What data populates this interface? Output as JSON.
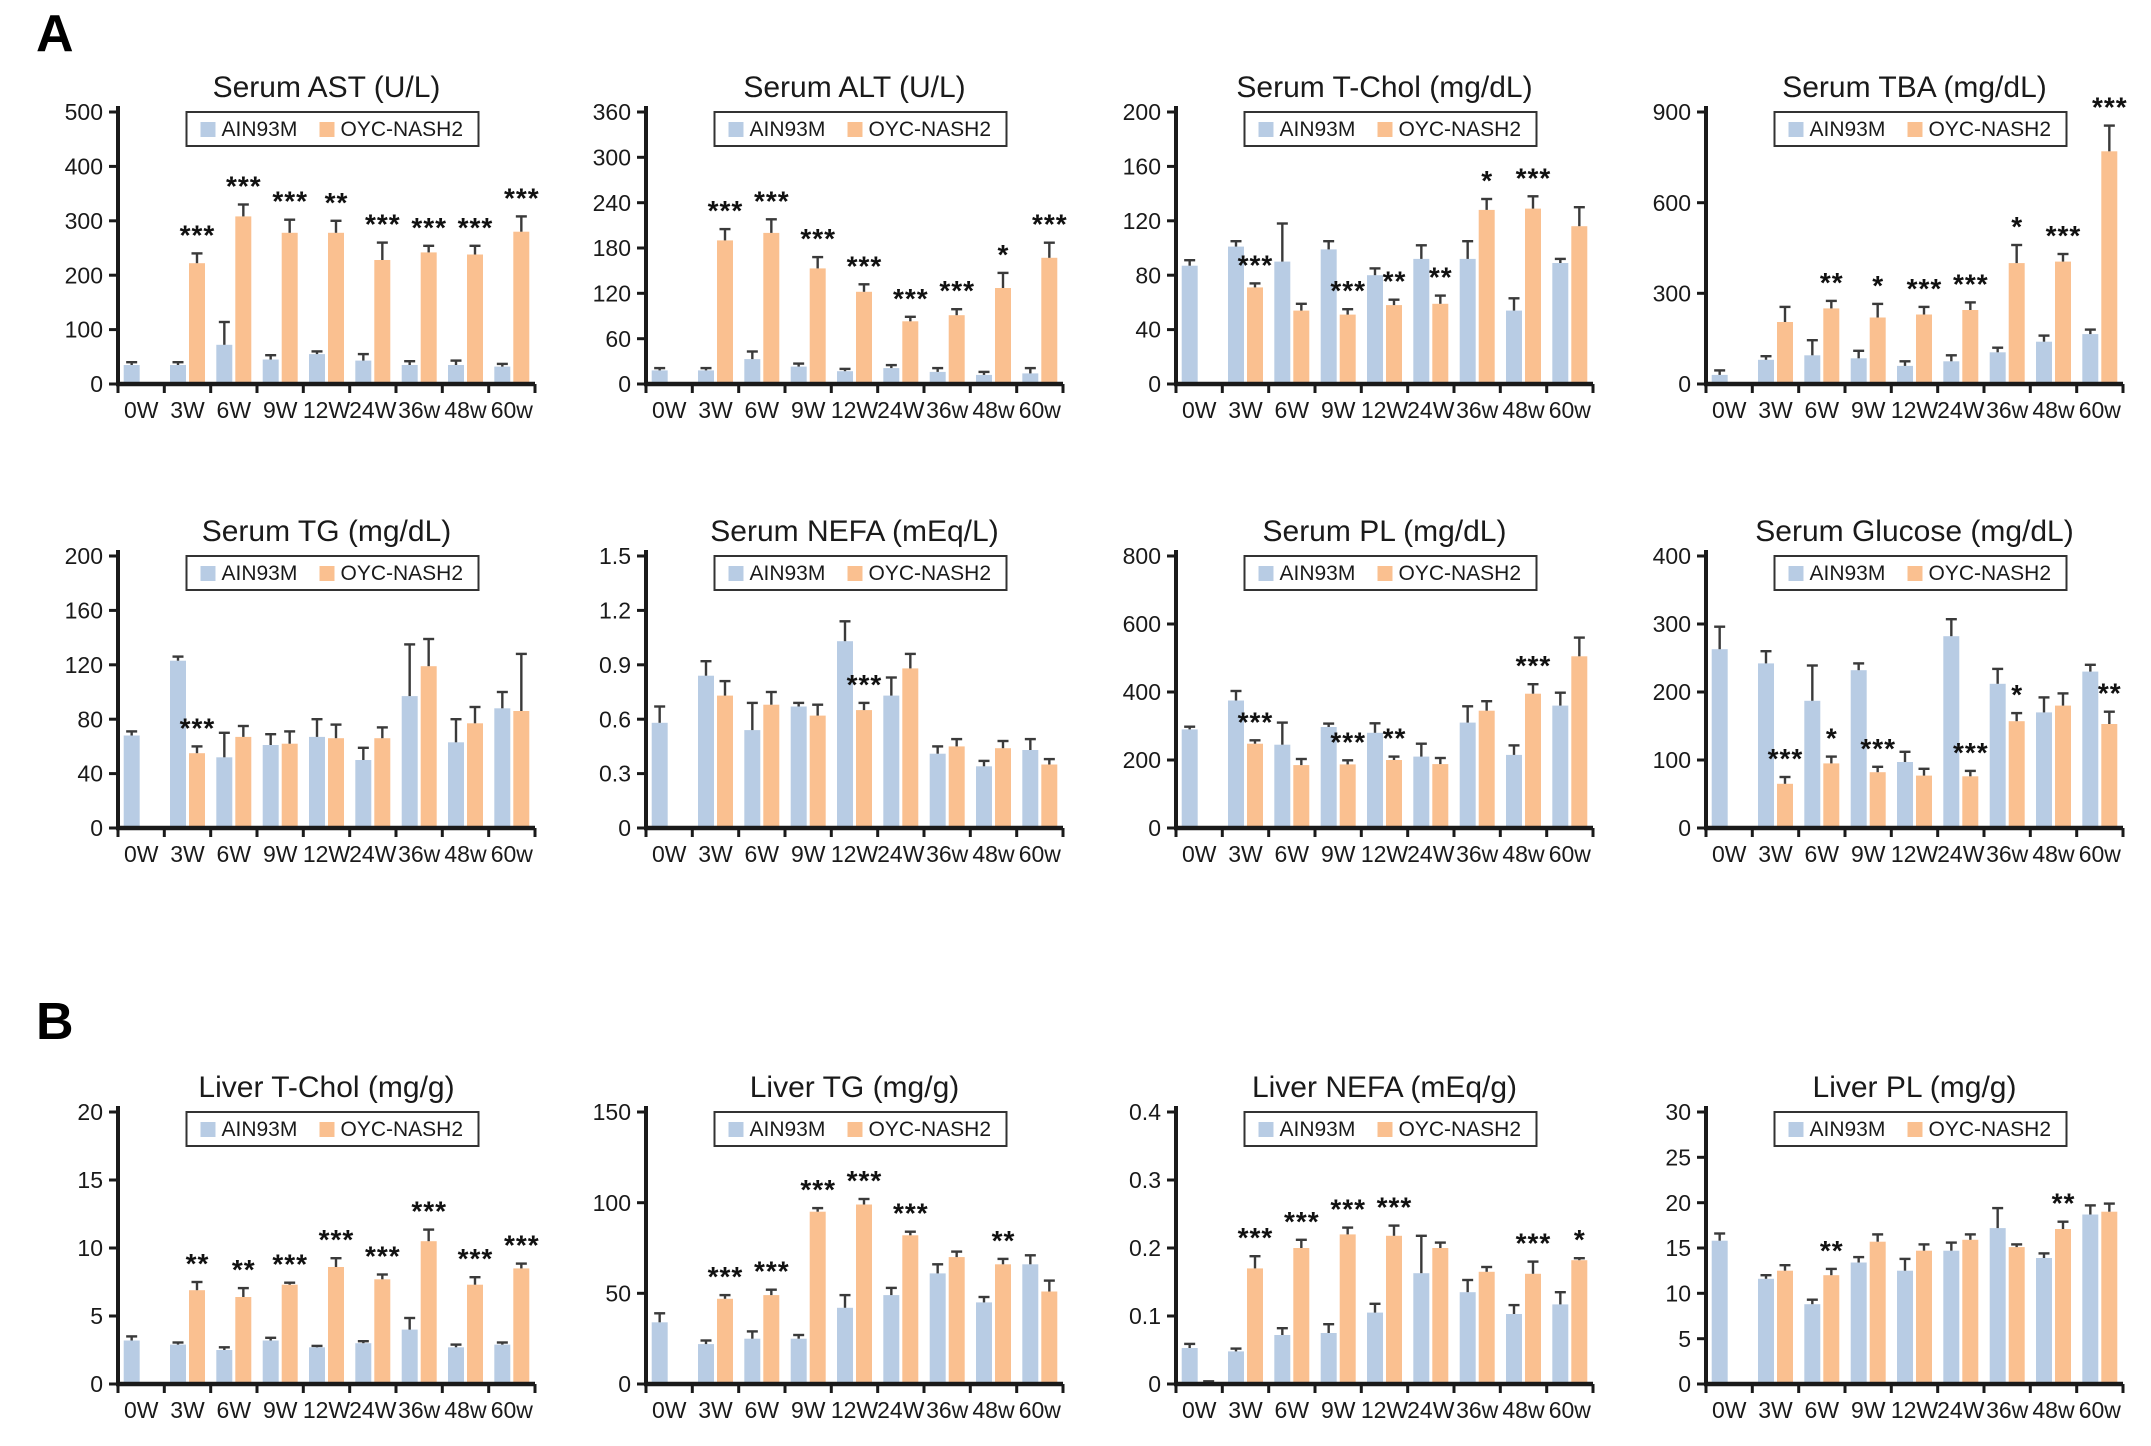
{
  "panels": {
    "a_label": "A",
    "b_label": "B"
  },
  "legend": {
    "series1": "AIN93M",
    "series2": "OYC-NASH2"
  },
  "colors": {
    "ain93m": "#B8CCE4",
    "oyc_nash2": "#FAC090",
    "error_bar": "#3a3a3a",
    "axis": "#1a1a1a",
    "significance": "#111111",
    "title_text": "#1a1a1a",
    "legend_border": "#333333"
  },
  "categories": [
    "0W",
    "3W",
    "6W",
    "9W",
    "12W",
    "24W",
    "36w",
    "48w",
    "60w"
  ],
  "chart_data": [
    {
      "type": "bar",
      "panel": "A",
      "title": "Serum AST (U/L)",
      "ylim": [
        0,
        500
      ],
      "yticks": [
        "0",
        "100",
        "200",
        "300",
        "400",
        "500"
      ],
      "categories": [
        "0W",
        "3W",
        "6W",
        "9W",
        "12W",
        "24W",
        "36w",
        "48w",
        "60w"
      ],
      "series": [
        {
          "name": "AIN93M",
          "values": [
            35,
            35,
            72,
            45,
            55,
            43,
            35,
            35,
            32
          ],
          "errors": [
            5,
            5,
            42,
            8,
            5,
            12,
            7,
            8,
            5
          ]
        },
        {
          "name": "OYC-NASH2",
          "values": [
            null,
            222,
            308,
            278,
            278,
            228,
            242,
            238,
            280
          ],
          "errors": [
            null,
            18,
            22,
            24,
            22,
            32,
            12,
            16,
            28
          ]
        }
      ],
      "significance": [
        "",
        "***",
        "***",
        "***",
        "**",
        "***",
        "***",
        "***",
        "***"
      ]
    },
    {
      "type": "bar",
      "panel": "A",
      "title": "Serum ALT (U/L)",
      "ylim": [
        0,
        360
      ],
      "yticks": [
        "0",
        "60",
        "120",
        "180",
        "240",
        "300",
        "360"
      ],
      "categories": [
        "0W",
        "3W",
        "6W",
        "9W",
        "12W",
        "24W",
        "36w",
        "48w",
        "60w"
      ],
      "series": [
        {
          "name": "AIN93M",
          "values": [
            18,
            18,
            33,
            23,
            17,
            21,
            16,
            12,
            14
          ],
          "errors": [
            3,
            3,
            10,
            4,
            3,
            4,
            5,
            4,
            7
          ]
        },
        {
          "name": "OYC-NASH2",
          "values": [
            null,
            190,
            200,
            153,
            122,
            83,
            91,
            127,
            167
          ],
          "errors": [
            null,
            15,
            18,
            15,
            10,
            6,
            8,
            20,
            20
          ]
        }
      ],
      "significance": [
        "",
        "***",
        "***",
        "***",
        "***",
        "***",
        "***",
        "*",
        "***"
      ]
    },
    {
      "type": "bar",
      "panel": "A",
      "title": "Serum T-Chol (mg/dL)",
      "ylim": [
        0,
        200
      ],
      "yticks": [
        "0",
        "40",
        "80",
        "120",
        "160",
        "200"
      ],
      "categories": [
        "0W",
        "3W",
        "6W",
        "9W",
        "12W",
        "24W",
        "36w",
        "48w",
        "60w"
      ],
      "series": [
        {
          "name": "AIN93M",
          "values": [
            87,
            101,
            90,
            99,
            80,
            92,
            92,
            54,
            89
          ],
          "errors": [
            4,
            4,
            28,
            6,
            5,
            10,
            13,
            9,
            3
          ]
        },
        {
          "name": "OYC-NASH2",
          "values": [
            null,
            71,
            54,
            51,
            58,
            59,
            128,
            129,
            116
          ],
          "errors": [
            null,
            3,
            5,
            4,
            4,
            6,
            8,
            9,
            14
          ]
        }
      ],
      "significance": [
        "",
        "***",
        "",
        "***",
        "**",
        "**",
        "*",
        "***",
        ""
      ]
    },
    {
      "type": "bar",
      "panel": "A",
      "title": "Serum TBA (mg/dL)",
      "ylim": [
        0,
        900
      ],
      "yticks": [
        "0",
        "300",
        "600",
        "900"
      ],
      "categories": [
        "0W",
        "3W",
        "6W",
        "9W",
        "12W",
        "24W",
        "36w",
        "48w",
        "60w"
      ],
      "series": [
        {
          "name": "AIN93M",
          "values": [
            30,
            80,
            95,
            85,
            60,
            75,
            105,
            140,
            165
          ],
          "errors": [
            15,
            12,
            50,
            25,
            15,
            20,
            15,
            20,
            15
          ]
        },
        {
          "name": "OYC-NASH2",
          "values": [
            null,
            205,
            250,
            220,
            230,
            245,
            400,
            405,
            770
          ],
          "errors": [
            null,
            50,
            25,
            45,
            25,
            25,
            60,
            25,
            85
          ]
        }
      ],
      "significance": [
        "",
        "",
        "**",
        "*",
        "***",
        "***",
        "*",
        "***",
        "***"
      ]
    },
    {
      "type": "bar",
      "panel": "A",
      "title": "Serum TG (mg/dL)",
      "ylim": [
        0,
        200
      ],
      "yticks": [
        "0",
        "40",
        "80",
        "120",
        "160",
        "200"
      ],
      "categories": [
        "0W",
        "3W",
        "6W",
        "9W",
        "12W",
        "24W",
        "36w",
        "48w",
        "60w"
      ],
      "series": [
        {
          "name": "AIN93M",
          "values": [
            68,
            123,
            52,
            61,
            67,
            50,
            97,
            63,
            88
          ],
          "errors": [
            3,
            3,
            18,
            8,
            13,
            9,
            38,
            17,
            12
          ]
        },
        {
          "name": "OYC-NASH2",
          "values": [
            null,
            55,
            67,
            62,
            66,
            66,
            119,
            77,
            86
          ],
          "errors": [
            null,
            5,
            8,
            9,
            10,
            8,
            20,
            12,
            42
          ]
        }
      ],
      "significance": [
        "",
        "***",
        "",
        "",
        "",
        "",
        "",
        "",
        ""
      ]
    },
    {
      "type": "bar",
      "panel": "A",
      "title": "Serum NEFA (mEq/L)",
      "ylim": [
        0,
        1.5
      ],
      "yticks": [
        "0",
        "0.3",
        "0.6",
        "0.9",
        "1.2",
        "1.5"
      ],
      "categories": [
        "0W",
        "3W",
        "6W",
        "9W",
        "12W",
        "24W",
        "36w",
        "48w",
        "60w"
      ],
      "series": [
        {
          "name": "AIN93M",
          "values": [
            0.58,
            0.84,
            0.54,
            0.67,
            1.03,
            0.73,
            0.41,
            0.34,
            0.43
          ],
          "errors": [
            0.09,
            0.08,
            0.15,
            0.02,
            0.11,
            0.1,
            0.04,
            0.03,
            0.06
          ]
        },
        {
          "name": "OYC-NASH2",
          "values": [
            null,
            0.73,
            0.68,
            0.62,
            0.65,
            0.88,
            0.45,
            0.44,
            0.35
          ],
          "errors": [
            null,
            0.08,
            0.07,
            0.06,
            0.04,
            0.08,
            0.04,
            0.04,
            0.03
          ]
        }
      ],
      "significance": [
        "",
        "",
        "",
        "",
        "***",
        "",
        "",
        "",
        ""
      ]
    },
    {
      "type": "bar",
      "panel": "A",
      "title": "Serum PL (mg/dL)",
      "ylim": [
        0,
        800
      ],
      "yticks": [
        "0",
        "200",
        "400",
        "600",
        "800"
      ],
      "categories": [
        "0W",
        "3W",
        "6W",
        "9W",
        "12W",
        "24W",
        "36w",
        "48w",
        "60w"
      ],
      "series": [
        {
          "name": "AIN93M",
          "values": [
            290,
            375,
            245,
            297,
            280,
            210,
            310,
            215,
            360
          ],
          "errors": [
            8,
            28,
            65,
            10,
            28,
            38,
            48,
            28,
            38
          ]
        },
        {
          "name": "OYC-NASH2",
          "values": [
            null,
            248,
            185,
            187,
            200,
            188,
            345,
            395,
            505
          ],
          "errors": [
            null,
            10,
            18,
            12,
            10,
            18,
            28,
            28,
            55
          ]
        }
      ],
      "significance": [
        "",
        "***",
        "",
        "***",
        "**",
        "",
        "",
        "***",
        ""
      ]
    },
    {
      "type": "bar",
      "panel": "A",
      "title": "Serum Glucose (mg/dL)",
      "ylim": [
        0,
        400
      ],
      "yticks": [
        "0",
        "100",
        "200",
        "300",
        "400"
      ],
      "categories": [
        "0W",
        "3W",
        "6W",
        "9W",
        "12W",
        "24W",
        "36w",
        "48w",
        "60w"
      ],
      "series": [
        {
          "name": "AIN93M",
          "values": [
            263,
            242,
            187,
            232,
            97,
            282,
            212,
            170,
            230
          ],
          "errors": [
            33,
            18,
            52,
            10,
            15,
            25,
            22,
            22,
            10
          ]
        },
        {
          "name": "OYC-NASH2",
          "values": [
            null,
            65,
            95,
            82,
            77,
            76,
            157,
            180,
            153
          ],
          "errors": [
            null,
            10,
            10,
            8,
            10,
            8,
            12,
            18,
            18
          ]
        }
      ],
      "significance": [
        "",
        "***",
        "*",
        "***",
        "",
        "***",
        "*",
        "",
        "**"
      ]
    },
    {
      "type": "bar",
      "panel": "B",
      "title": "Liver  T-Chol (mg/g)",
      "ylim": [
        0,
        20
      ],
      "yticks": [
        "0",
        "5",
        "10",
        "15",
        "20"
      ],
      "categories": [
        "0W",
        "3W",
        "6W",
        "9W",
        "12W",
        "24W",
        "36w",
        "48w",
        "60w"
      ],
      "series": [
        {
          "name": "AIN93M",
          "values": [
            3.2,
            2.9,
            2.5,
            3.2,
            2.7,
            3.0,
            4.0,
            2.7,
            2.9
          ],
          "errors": [
            0.3,
            0.15,
            0.2,
            0.2,
            0.1,
            0.15,
            0.85,
            0.2,
            0.15
          ]
        },
        {
          "name": "OYC-NASH2",
          "values": [
            null,
            6.9,
            6.4,
            7.3,
            8.6,
            7.7,
            10.5,
            7.3,
            8.5
          ],
          "errors": [
            null,
            0.6,
            0.65,
            0.15,
            0.65,
            0.35,
            0.85,
            0.55,
            0.35
          ]
        }
      ],
      "significance": [
        "",
        "**",
        "**",
        "***",
        "***",
        "***",
        "***",
        "***",
        "***"
      ]
    },
    {
      "type": "bar",
      "panel": "B",
      "title": "Liver TG (mg/g)",
      "ylim": [
        0,
        150
      ],
      "yticks": [
        "0",
        "50",
        "100",
        "150"
      ],
      "categories": [
        "0W",
        "3W",
        "6W",
        "9W",
        "12W",
        "24W",
        "36w",
        "48w",
        "60w"
      ],
      "series": [
        {
          "name": "AIN93M",
          "values": [
            34,
            22,
            25,
            25,
            42,
            49,
            61,
            45,
            66
          ],
          "errors": [
            5,
            2,
            4,
            2,
            7,
            4,
            5,
            3,
            5
          ]
        },
        {
          "name": "OYC-NASH2",
          "values": [
            null,
            47,
            49,
            95,
            99,
            82,
            70,
            66,
            51
          ],
          "errors": [
            null,
            2,
            3,
            2,
            3,
            2,
            3,
            3,
            6
          ]
        }
      ],
      "significance": [
        "",
        "***",
        "***",
        "***",
        "***",
        "***",
        "",
        "**",
        ""
      ]
    },
    {
      "type": "bar",
      "panel": "B",
      "title": "Liver NEFA  (mEq/g)",
      "ylim": [
        0,
        0.4
      ],
      "yticks": [
        "0",
        "0.1",
        "0.2",
        "0.3",
        "0.4"
      ],
      "categories": [
        "0W",
        "3W",
        "6W",
        "9W",
        "12W",
        "24W",
        "36w",
        "48w",
        "60w"
      ],
      "series": [
        {
          "name": "AIN93M",
          "values": [
            0.053,
            0.048,
            0.072,
            0.075,
            0.105,
            0.163,
            0.135,
            0.103,
            0.117
          ],
          "errors": [
            0.006,
            0.004,
            0.01,
            0.013,
            0.013,
            0.055,
            0.018,
            0.013,
            0.018
          ]
        },
        {
          "name": "OYC-NASH2",
          "values": [
            0.003,
            0.17,
            0.2,
            0.22,
            0.218,
            0.2,
            0.165,
            0.162,
            0.182
          ],
          "errors": [
            0.001,
            0.018,
            0.012,
            0.01,
            0.015,
            0.008,
            0.007,
            0.018,
            0.003
          ]
        }
      ],
      "significance": [
        "",
        "***",
        "***",
        "***",
        "***",
        "",
        "",
        "***",
        "*"
      ]
    },
    {
      "type": "bar",
      "panel": "B",
      "title": "Liver PL (mg/g)",
      "ylim": [
        0,
        30
      ],
      "yticks": [
        "0",
        "5",
        "10",
        "15",
        "20",
        "25",
        "30"
      ],
      "categories": [
        "0W",
        "3W",
        "6W",
        "9W",
        "12W",
        "24W",
        "36w",
        "48w",
        "60w"
      ],
      "series": [
        {
          "name": "AIN93M",
          "values": [
            15.8,
            11.6,
            8.8,
            13.4,
            12.5,
            14.7,
            17.2,
            13.9,
            18.7
          ],
          "errors": [
            0.8,
            0.4,
            0.5,
            0.6,
            1.3,
            0.9,
            2.2,
            0.5,
            1.0
          ]
        },
        {
          "name": "OYC-NASH2",
          "values": [
            null,
            12.5,
            12.0,
            15.7,
            14.7,
            15.9,
            15.1,
            17.1,
            19.0
          ],
          "errors": [
            null,
            0.6,
            0.7,
            0.8,
            0.7,
            0.6,
            0.3,
            0.8,
            0.9
          ]
        }
      ],
      "significance": [
        "",
        "",
        "**",
        "",
        "",
        "",
        "",
        "**",
        ""
      ]
    }
  ]
}
